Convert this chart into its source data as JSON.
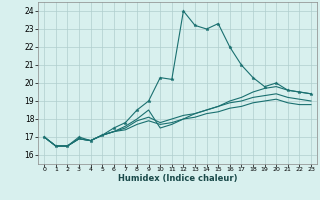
{
  "xlabel": "Humidex (Indice chaleur)",
  "background_color": "#d8f0ee",
  "grid_color": "#b0cece",
  "line_color": "#1a7070",
  "xlim": [
    -0.5,
    23.5
  ],
  "ylim": [
    15.5,
    24.5
  ],
  "yticks": [
    16,
    17,
    18,
    19,
    20,
    21,
    22,
    23,
    24
  ],
  "xtick_labels": [
    "0",
    "1",
    "2",
    "3",
    "4",
    "5",
    "6",
    "7",
    "8",
    "9",
    "10",
    "11",
    "12",
    "13",
    "14",
    "15",
    "16",
    "17",
    "18",
    "19",
    "20",
    "21",
    "22",
    "23"
  ],
  "series": [
    [
      17.0,
      16.5,
      16.5,
      17.0,
      16.8,
      17.1,
      17.5,
      17.8,
      18.5,
      19.0,
      20.3,
      20.2,
      24.0,
      23.2,
      23.0,
      23.3,
      22.0,
      21.0,
      20.3,
      19.8,
      20.0,
      19.6,
      19.5,
      19.4
    ],
    [
      17.0,
      16.5,
      16.5,
      16.9,
      16.8,
      17.1,
      17.3,
      17.6,
      18.0,
      18.5,
      17.5,
      17.7,
      18.0,
      18.3,
      18.5,
      18.7,
      19.0,
      19.2,
      19.5,
      19.7,
      19.8,
      19.6,
      19.5,
      19.4
    ],
    [
      17.0,
      16.5,
      16.5,
      16.9,
      16.8,
      17.1,
      17.3,
      17.5,
      17.9,
      18.1,
      17.8,
      18.0,
      18.2,
      18.3,
      18.5,
      18.7,
      18.9,
      19.0,
      19.2,
      19.3,
      19.4,
      19.2,
      19.1,
      19.0
    ],
    [
      17.0,
      16.5,
      16.5,
      16.9,
      16.8,
      17.1,
      17.3,
      17.4,
      17.7,
      17.9,
      17.7,
      17.8,
      18.0,
      18.1,
      18.3,
      18.4,
      18.6,
      18.7,
      18.9,
      19.0,
      19.1,
      18.9,
      18.8,
      18.8
    ]
  ]
}
